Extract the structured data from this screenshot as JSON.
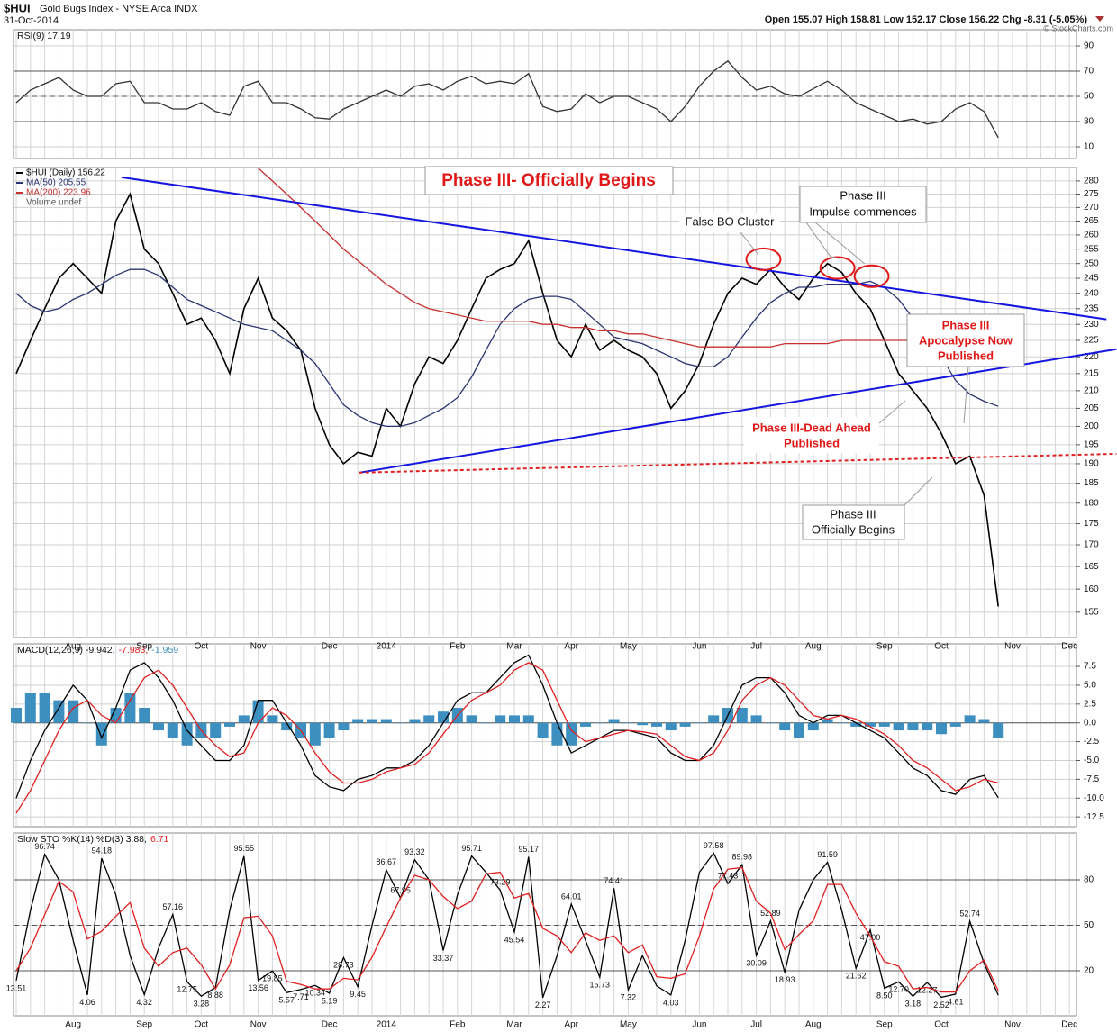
{
  "header": {
    "symbol": "$HUI",
    "name": "Gold Bugs Index - NYSE Arca INDX",
    "date": "31-Oct-2014",
    "quote": "Open 155.07 High 158.81 Low 152.17 Close 156.22 Chg -8.31 (-5.05%)",
    "credit": "© StockCharts.com"
  },
  "chart_data": [
    {
      "type": "line",
      "label": [
        "RSI(9) 17.19"
      ],
      "ylim": [
        0.7,
        102.9
      ],
      "yticks": [
        10,
        30,
        50,
        70,
        90
      ],
      "ref_lines": [
        {
          "value": 30
        },
        {
          "value": 70
        },
        {
          "value": 50,
          "dashed": true
        }
      ],
      "series": [
        {
          "name": "RSI(9)",
          "color": "#333333",
          "values": [
            45,
            55,
            60,
            65,
            55,
            50,
            50,
            60,
            62,
            45,
            45,
            40,
            40,
            45,
            38,
            35,
            58,
            62,
            45,
            45,
            40,
            33,
            32,
            40,
            45,
            50,
            55,
            50,
            58,
            60,
            55,
            62,
            66,
            60,
            62,
            60,
            68,
            42,
            38,
            40,
            52,
            45,
            50,
            50,
            45,
            40,
            30,
            42,
            58,
            70,
            78,
            65,
            55,
            58,
            52,
            50,
            56,
            62,
            55,
            45,
            40,
            35,
            30,
            32,
            28,
            30,
            40,
            45,
            38,
            17.19,
            null,
            null,
            null,
            null,
            null
          ]
        }
      ]
    },
    {
      "type": "line",
      "log": true,
      "categories": [
        null,
        null,
        null,
        null,
        "Aug",
        null,
        null,
        null,
        null,
        "Sep",
        null,
        null,
        null,
        "Oct",
        null,
        null,
        null,
        "Nov",
        null,
        null,
        null,
        null,
        "Dec",
        null,
        null,
        null,
        "2014",
        null,
        null,
        null,
        null,
        "Feb",
        null,
        null,
        null,
        "Mar",
        null,
        null,
        null,
        "Apr",
        null,
        null,
        null,
        "May",
        null,
        null,
        null,
        null,
        "Jun",
        null,
        null,
        null,
        "Jul",
        null,
        null,
        null,
        "Aug",
        null,
        null,
        null,
        null,
        "Sep",
        null,
        null,
        null,
        "Oct",
        null,
        null,
        null,
        null,
        "Nov",
        null,
        null,
        null,
        "Dec"
      ],
      "ylim": [
        149.7,
        285.2
      ],
      "yticks": [
        155,
        160,
        165,
        170,
        175,
        180,
        185,
        190,
        195,
        200,
        205,
        210,
        215,
        220,
        225,
        230,
        235,
        240,
        245,
        250,
        255,
        260,
        265,
        270,
        275,
        280
      ],
      "series": [
        {
          "name": "$HUI (Daily) 156.22",
          "color": "#000000",
          "values": [
            215,
            225,
            235,
            245,
            250,
            245,
            240,
            265,
            275,
            255,
            250,
            240,
            230,
            232,
            225,
            215,
            235,
            245,
            232,
            228,
            222,
            205,
            195,
            190,
            193,
            192,
            205,
            200,
            212,
            220,
            218,
            225,
            235,
            245,
            248,
            250,
            258,
            240,
            225,
            220,
            230,
            222,
            225,
            222,
            220,
            215,
            205,
            210,
            218,
            230,
            240,
            245,
            243,
            248,
            242,
            238,
            245,
            250,
            247,
            240,
            235,
            225,
            215,
            210,
            205,
            198,
            190,
            192,
            182,
            156.22,
            null,
            null,
            null,
            null,
            null
          ]
        },
        {
          "name": "MA(50) 205.55",
          "color": "#2a3470",
          "values": [
            240,
            236,
            234,
            235,
            238,
            240,
            243,
            246,
            248,
            248,
            246,
            242,
            238,
            236,
            234,
            232,
            230,
            229,
            228,
            225,
            222,
            218,
            212,
            206,
            203,
            201,
            200,
            200,
            201,
            203,
            205,
            208,
            214,
            222,
            230,
            235,
            238,
            239,
            239,
            238,
            234,
            230,
            226,
            225,
            224,
            222,
            220,
            218,
            217,
            217,
            220,
            226,
            232,
            237,
            240,
            242,
            242,
            243,
            243,
            243,
            244,
            242,
            238,
            232,
            226,
            220,
            213,
            209,
            207,
            205.55,
            null,
            null,
            null,
            null,
            null
          ]
        },
        {
          "name": "MA(200) 223.96",
          "color": "#c83030",
          "values": [
            null,
            null,
            null,
            null,
            null,
            null,
            null,
            null,
            null,
            null,
            null,
            null,
            null,
            null,
            null,
            null,
            null,
            285,
            280,
            275,
            270,
            265,
            260,
            255,
            251,
            247,
            243,
            240,
            237,
            235,
            234,
            233,
            232,
            231,
            231,
            231,
            231,
            230,
            230,
            229,
            229,
            228,
            228,
            227,
            227,
            226,
            225,
            224,
            223,
            223,
            223,
            223,
            223,
            223,
            224,
            224,
            224,
            224,
            225,
            225,
            225,
            225,
            225,
            225,
            225,
            225,
            225,
            224,
            224,
            223.96,
            null,
            null,
            null,
            null,
            null
          ]
        }
      ],
      "volume_label": "Volume undef",
      "trendlines": [
        {
          "from": [
            7.4,
            281.4
          ],
          "to": [
            76.6,
            231.6
          ],
          "color": "#1515e0",
          "dashed": false
        },
        {
          "from": [
            24.1,
            187.7
          ],
          "to": [
            77.3,
            222.3
          ],
          "color": "#1515e0",
          "dashed": false
        },
        {
          "from": [
            24.1,
            187.7
          ],
          "to": [
            77.3,
            192.6
          ],
          "color": "#e02020",
          "dashed": true
        }
      ],
      "highlights": [
        [
          52.5,
          251.5
        ],
        [
          57.7,
          248.5
        ],
        [
          60.1,
          245.7
        ]
      ],
      "annotations": [
        {
          "lines": [
            "Phase III- Officially Begins"
          ]
        },
        {
          "lines": [
            "False BO Cluster"
          ]
        },
        {
          "lines": [
            "Phase III",
            "Impulse commences"
          ]
        },
        {
          "lines": [
            "Phase III",
            "Apocalypse Now",
            "Published"
          ]
        },
        {
          "lines": [
            "Phase III-Dead Ahead",
            "Published"
          ]
        },
        {
          "lines": [
            "Phase III",
            "Officially Begins"
          ]
        }
      ]
    },
    {
      "type": "line",
      "label": [
        "MACD(12,26,9) -9.942,",
        "-7.983,",
        "-1.959"
      ],
      "ylim": [
        -13.8,
        10.5
      ],
      "yticks": [
        7.5,
        {
          "value": 5,
          "label": "5.0"
        },
        2.5,
        {
          "value": 0,
          "label": "0.0"
        },
        -2.5,
        {
          "value": -5,
          "label": "-5.0"
        },
        -7.5,
        {
          "value": -10,
          "label": "-10.0"
        },
        -12.5
      ],
      "ref_lines": [
        {
          "value": 0
        }
      ],
      "series": [
        {
          "name": "Histogram",
          "style": "bar",
          "color": "#3d8fc0",
          "values": [
            2,
            4,
            4,
            3,
            3,
            0,
            -3,
            2,
            4,
            2,
            -1,
            -2,
            -3,
            -2,
            -2,
            -0.5,
            1,
            3,
            1,
            -1,
            -2,
            -3,
            -2,
            -1,
            0.5,
            0.5,
            0.5,
            0,
            0.5,
            1,
            1.5,
            2,
            1,
            0,
            1,
            1,
            1,
            -2,
            -3,
            -3,
            -0.5,
            0,
            0.5,
            0,
            -0.3,
            -0.5,
            -1,
            -0.5,
            0,
            1,
            2,
            2,
            1,
            0,
            -1,
            -2,
            -1,
            0.5,
            0,
            -0.5,
            -0.5,
            -0.5,
            -1,
            -1,
            -1,
            -1.5,
            -0.5,
            1,
            0.5,
            -1.959,
            null,
            null,
            null,
            null,
            null
          ]
        },
        {
          "name": "MACD",
          "color": "#000000",
          "values": [
            -10,
            -5,
            -1,
            2,
            5,
            3,
            -2,
            2,
            7,
            8,
            6,
            3,
            -1,
            -3,
            -5,
            -5,
            -3,
            3,
            3,
            0,
            -3,
            -7,
            -8.5,
            -9,
            -7.5,
            -7,
            -6,
            -6,
            -5,
            -3,
            0,
            3,
            4,
            4,
            6,
            8,
            9,
            5,
            0,
            -4,
            -3,
            -2,
            -1,
            -1,
            -1.5,
            -2,
            -4,
            -5,
            -5,
            -3,
            1,
            5,
            6,
            6,
            4,
            1,
            0,
            1,
            1,
            0,
            -1,
            -2,
            -4,
            -6,
            -7,
            -9,
            -9.5,
            -7.5,
            -7,
            -9.942,
            null,
            null,
            null,
            null,
            null
          ]
        },
        {
          "name": "Signal",
          "color": "#e02020",
          "values": [
            -12,
            -9,
            -5,
            -1,
            2,
            3,
            1,
            0,
            3,
            6,
            7,
            5,
            2,
            -1,
            -3,
            -4.5,
            -4,
            0,
            2,
            1,
            -1,
            -4,
            -6.5,
            -8,
            -8,
            -7.5,
            -6.5,
            -6,
            -5.5,
            -4,
            -1.5,
            1,
            3,
            4,
            5,
            7,
            8,
            7,
            3,
            -1,
            -2.5,
            -2,
            -1.5,
            -1,
            -1.2,
            -1.5,
            -3,
            -4.5,
            -5,
            -4,
            -1,
            3,
            5,
            6,
            5,
            3,
            1,
            0.5,
            1,
            0.5,
            -0.5,
            -1.5,
            -3,
            -5,
            -6,
            -7.5,
            -9,
            -8.5,
            -7.5,
            -7.983,
            null,
            null,
            null,
            null,
            null
          ]
        }
      ]
    },
    {
      "type": "line",
      "label": [
        "Slow STO %K(14) %D(3) 3.88,",
        "6.71"
      ],
      "categories": [
        null,
        null,
        null,
        null,
        "Aug",
        null,
        null,
        null,
        null,
        "Sep",
        null,
        null,
        null,
        "Oct",
        null,
        null,
        null,
        "Nov",
        null,
        null,
        null,
        null,
        "Dec",
        null,
        null,
        null,
        "2014",
        null,
        null,
        null,
        null,
        "Feb",
        null,
        null,
        null,
        "Mar",
        null,
        null,
        null,
        "Apr",
        null,
        null,
        null,
        "May",
        null,
        null,
        null,
        null,
        "Jun",
        null,
        null,
        null,
        "Jul",
        null,
        null,
        null,
        "Aug",
        null,
        null,
        null,
        null,
        "Sep",
        null,
        null,
        null,
        "Oct",
        null,
        null,
        null,
        null,
        "Nov",
        null,
        null,
        null,
        "Dec"
      ],
      "ylim": [
        -9.7,
        110.9
      ],
      "yticks": [
        20,
        50,
        80
      ],
      "ref_lines": [
        {
          "value": 20
        },
        {
          "value": 80
        },
        {
          "value": 50,
          "dashed": true
        }
      ],
      "series": [
        {
          "name": "%K(14)",
          "color": "#000000",
          "values": [
            13.51,
            60,
            96.74,
            80,
            40,
            4.06,
            94.18,
            70,
            30,
            4.32,
            35,
            57.16,
            12.75,
            3.28,
            8.88,
            60,
            95.55,
            13.56,
            19.85,
            5.57,
            7.71,
            10.34,
            5.19,
            28.73,
            9.45,
            50,
            86.67,
            67.95,
            93.32,
            80,
            33.37,
            70,
            95.71,
            85,
            73.29,
            45.54,
            95.17,
            2.27,
            30,
            64.01,
            40,
            15.73,
            74.41,
            7.32,
            30,
            10,
            4.03,
            40,
            85,
            97.58,
            77.43,
            89.98,
            30.09,
            52.89,
            18.93,
            60,
            80,
            91.59,
            60,
            21.62,
            47.0,
            8.5,
            12.7,
            3.18,
            12.27,
            2.52,
            4.61,
            52.74,
            25,
            3.88,
            null,
            null,
            null,
            null,
            null
          ],
          "value_labels": [
            "13.51",
            null,
            "96.74",
            null,
            null,
            "4.06",
            "94.18",
            null,
            null,
            "4.32",
            null,
            "57.16",
            "12.75",
            "3.28",
            "8.88",
            null,
            "95.55",
            "13.56",
            "19.85",
            "5.57",
            "7.71",
            "10.34",
            "5.19",
            "28.73",
            "9.45",
            null,
            "86.67",
            "67.95",
            "93.32",
            null,
            "33.37",
            null,
            "95.71",
            null,
            "73.29",
            "45.54",
            "95.17",
            "2.27",
            null,
            "64.01",
            null,
            "15.73",
            "74.41",
            "7.32",
            null,
            null,
            "4.03",
            null,
            null,
            "97.58",
            "77.43",
            "89.98",
            "30.09",
            "52.89",
            "18.93",
            null,
            null,
            "91.59",
            null,
            "21.62",
            "47.00",
            "8.50",
            "12.70",
            "3.18",
            "12.27",
            "2.52",
            "4.61",
            "52.74",
            null,
            null,
            null,
            null,
            null,
            null,
            null
          ]
        },
        {
          "name": "%D(3)",
          "color": "#e02020",
          "values": [
            20,
            35,
            57,
            79,
            72,
            41,
            46,
            56,
            65,
            35,
            23,
            32,
            35,
            24,
            8,
            24,
            55,
            56,
            43,
            13,
            11,
            8,
            8,
            15,
            14,
            29,
            49,
            68,
            83,
            80,
            69,
            61,
            66,
            84,
            85,
            68,
            71,
            48,
            43,
            32,
            45,
            40,
            43,
            32,
            37,
            16,
            15,
            18,
            43,
            74,
            87,
            88,
            66,
            58,
            34,
            44,
            53,
            77,
            77,
            58,
            43,
            26,
            23,
            8,
            9,
            6,
            6,
            20,
            27,
            6.71,
            null,
            null,
            null,
            null,
            null
          ]
        }
      ]
    }
  ]
}
